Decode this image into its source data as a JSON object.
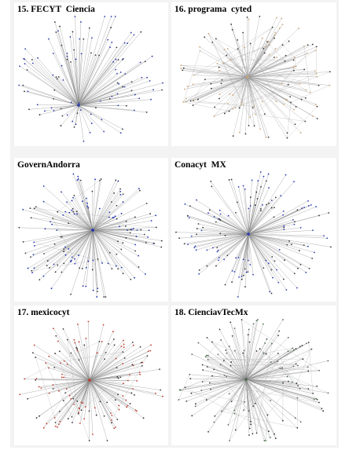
{
  "panels": [
    {
      "title": "15. FECYT  Ciencia",
      "node_color": "#2a3aa8",
      "edge_color": "#8a8a8a",
      "nodes": 120,
      "seed": 15,
      "secondary_edges": 0
    },
    {
      "title": "16. programa  cyted",
      "node_color": "#c9a47a",
      "edge_color": "#9a9a9a",
      "nodes": 140,
      "seed": 16,
      "secondary_edges": 40
    },
    {
      "title": "GovernAndorra",
      "node_color": "#1d2fb0",
      "edge_color": "#8a8a8a",
      "nodes": 160,
      "seed": 31,
      "secondary_edges": 6
    },
    {
      "title": "Conacyt  MX",
      "node_color": "#2a3ab8",
      "edge_color": "#8a8a8a",
      "nodes": 150,
      "seed": 42,
      "secondary_edges": 0
    },
    {
      "title": "17. mexicocyt",
      "node_color": "#c0392b",
      "edge_color": "#8a8a8a",
      "nodes": 150,
      "seed": 17,
      "secondary_edges": 10
    },
    {
      "title": "18. CienciavTecMx",
      "node_color": "#4a6a4a",
      "edge_color": "#8a8a8a",
      "nodes": 140,
      "seed": 18,
      "secondary_edges": 40
    }
  ]
}
